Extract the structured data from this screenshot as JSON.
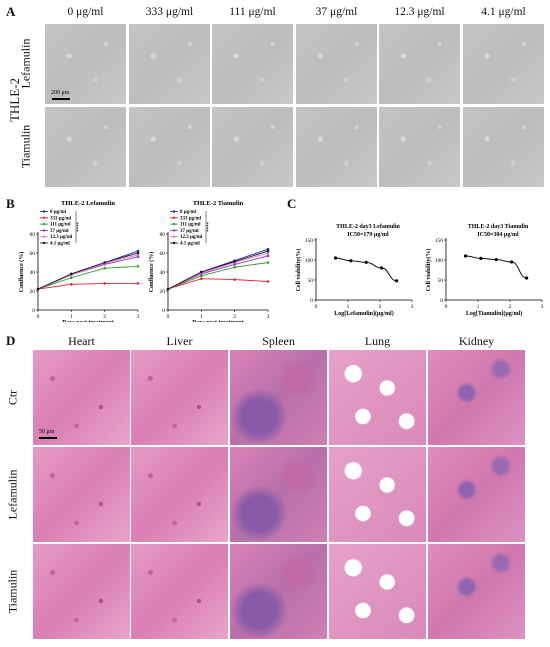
{
  "panels": {
    "A": {
      "letter": "A",
      "cell_line": "THLE-2",
      "columns": [
        "0 μg/ml",
        "333 μg/ml",
        "111 μg/ml",
        "37 μg/ml",
        "12.3 μg/ml",
        "4.1 μg/ml"
      ],
      "rows": [
        "Lefamulin",
        "Tiamulin"
      ],
      "scale_bar": "200 μm"
    },
    "B": {
      "letter": "B",
      "chart_data": [
        {
          "type": "line",
          "title": "THLE-2  Lefamulin",
          "xlabel": "Days post treatment",
          "ylabel": "Confluence (%)",
          "x": [
            0,
            1,
            2,
            3
          ],
          "xlim": [
            0,
            3
          ],
          "ylim": [
            0,
            80
          ],
          "yticks": [
            0,
            20,
            40,
            60,
            80
          ],
          "significance": "****",
          "series": [
            {
              "name": "0 μg/ml",
              "color": "#1f2fbf",
              "values": [
                22,
                38,
                50,
                62
              ]
            },
            {
              "name": "333 μg/ml",
              "color": "#e0262a",
              "values": [
                22,
                27,
                28,
                28
              ]
            },
            {
              "name": "111 μg/ml",
              "color": "#2ca02c",
              "values": [
                22,
                34,
                44,
                46
              ]
            },
            {
              "name": "37 μg/ml",
              "color": "#9b30c8",
              "values": [
                22,
                37,
                48,
                56
              ]
            },
            {
              "name": "12.3 μg/ml",
              "color": "#e377c2",
              "values": [
                22,
                37,
                49,
                58
              ]
            },
            {
              "name": "4.1 μg/ml",
              "color": "#1a1a1a",
              "values": [
                22,
                38,
                50,
                60
              ]
            }
          ]
        },
        {
          "type": "line",
          "title": "THLE-2  Tiamulin",
          "xlabel": "Days post treatment",
          "ylabel": "Confluence (%)",
          "x": [
            0,
            1,
            2,
            3
          ],
          "xlim": [
            0,
            3
          ],
          "ylim": [
            0,
            80
          ],
          "yticks": [
            0,
            20,
            40,
            60,
            80
          ],
          "significance": "****",
          "series": [
            {
              "name": "0 μg/ml",
              "color": "#1f2fbf",
              "values": [
                22,
                40,
                52,
                64
              ]
            },
            {
              "name": "333 μg/ml",
              "color": "#e0262a",
              "values": [
                22,
                33,
                32,
                30
              ]
            },
            {
              "name": "111 μg/ml",
              "color": "#2ca02c",
              "values": [
                22,
                36,
                45,
                50
              ]
            },
            {
              "name": "37 μg/ml",
              "color": "#9b30c8",
              "values": [
                22,
                38,
                48,
                57
              ]
            },
            {
              "name": "12.3 μg/ml",
              "color": "#e377c2",
              "values": [
                22,
                39,
                50,
                60
              ]
            },
            {
              "name": "4.1 μg/ml",
              "color": "#1a1a1a",
              "values": [
                22,
                40,
                51,
                62
              ]
            }
          ]
        }
      ]
    },
    "C": {
      "letter": "C",
      "chart_data": [
        {
          "type": "line",
          "title": "THLE-2  day3  Lefamulin",
          "subtitle": "IC50=179 μg/ml",
          "xlabel": "Log[Lefamulin](μg/ml)",
          "ylabel": "Cell viability(%)",
          "x": [
            0.61,
            1.09,
            1.57,
            2.05,
            2.52
          ],
          "values": [
            105,
            98,
            94,
            80,
            48
          ],
          "xlim": [
            0,
            3
          ],
          "ylim": [
            0,
            150
          ],
          "yticks": [
            0,
            50,
            100,
            150
          ],
          "xticks": [
            0,
            1,
            2,
            3
          ]
        },
        {
          "type": "line",
          "title": "THLE-2  day3  Tiamulin",
          "subtitle": "IC50=304 μg/ml",
          "xlabel": "Log[Tiamulin](μg/ml)",
          "ylabel": "Cell viability(%)",
          "x": [
            0.61,
            1.09,
            1.57,
            2.05,
            2.52
          ],
          "values": [
            110,
            104,
            101,
            95,
            55
          ],
          "xlim": [
            0,
            3
          ],
          "ylim": [
            0,
            150
          ],
          "yticks": [
            0,
            50,
            100,
            150
          ],
          "xticks": [
            0,
            1,
            2,
            3
          ]
        }
      ]
    },
    "D": {
      "letter": "D",
      "columns": [
        "Heart",
        "Liver",
        "Spleen",
        "Lung",
        "Kidney"
      ],
      "rows": [
        "Ctr",
        "Lefamulin",
        "Tiamulin"
      ],
      "scale_bar": "50 μm"
    }
  }
}
